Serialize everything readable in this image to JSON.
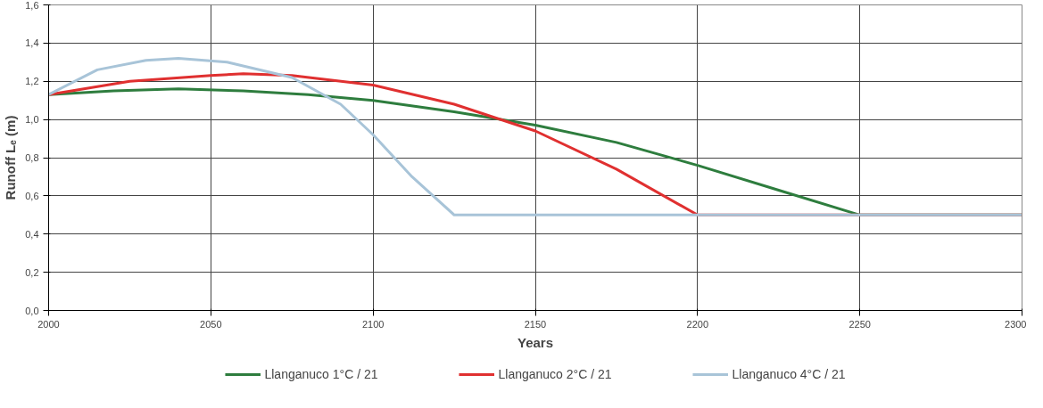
{
  "chart_data": {
    "type": "line",
    "xlabel": "Years",
    "ylabel": "Runoff Lₑ (m)",
    "xlim": [
      2000,
      2300
    ],
    "ylim": [
      0,
      1.6
    ],
    "xticks": [
      2000,
      2050,
      2100,
      2150,
      2200,
      2250,
      2300
    ],
    "yticks": [
      {
        "value": 0,
        "label": "0,0"
      },
      {
        "value": 0.2,
        "label": "0,2"
      },
      {
        "value": 0.4,
        "label": "0,4"
      },
      {
        "value": 0.6,
        "label": "0,6"
      },
      {
        "value": 0.8,
        "label": "0,8"
      },
      {
        "value": 1.0,
        "label": "1,0"
      },
      {
        "value": 1.2,
        "label": "1,2"
      },
      {
        "value": 1.4,
        "label": "1,4"
      },
      {
        "value": 1.6,
        "label": "1,6"
      }
    ],
    "grid": true,
    "legend": "bottom",
    "marker": "none",
    "line_style": "solid",
    "series": [
      {
        "name": "Llanganuco 1°C / 21",
        "color": "#2e7d3e",
        "x": [
          2000,
          2020,
          2040,
          2060,
          2080,
          2100,
          2125,
          2150,
          2175,
          2200,
          2225,
          2250,
          2300
        ],
        "values": [
          1.13,
          1.15,
          1.16,
          1.15,
          1.13,
          1.1,
          1.04,
          0.97,
          0.88,
          0.76,
          0.63,
          0.5,
          0.5
        ]
      },
      {
        "name": "Llanganuco 2°C / 21",
        "color": "#e03030",
        "x": [
          2000,
          2025,
          2050,
          2060,
          2075,
          2100,
          2125,
          2150,
          2175,
          2200,
          2300
        ],
        "values": [
          1.13,
          1.2,
          1.23,
          1.24,
          1.23,
          1.18,
          1.08,
          0.94,
          0.74,
          0.5,
          0.5
        ]
      },
      {
        "name": "Llanganuco 4°C / 21",
        "color": "#a8c4d8",
        "x": [
          2000,
          2015,
          2030,
          2040,
          2055,
          2075,
          2090,
          2100,
          2112,
          2125,
          2200,
          2300
        ],
        "values": [
          1.13,
          1.26,
          1.31,
          1.32,
          1.3,
          1.22,
          1.08,
          0.92,
          0.7,
          0.5,
          0.5,
          0.5
        ]
      }
    ]
  }
}
